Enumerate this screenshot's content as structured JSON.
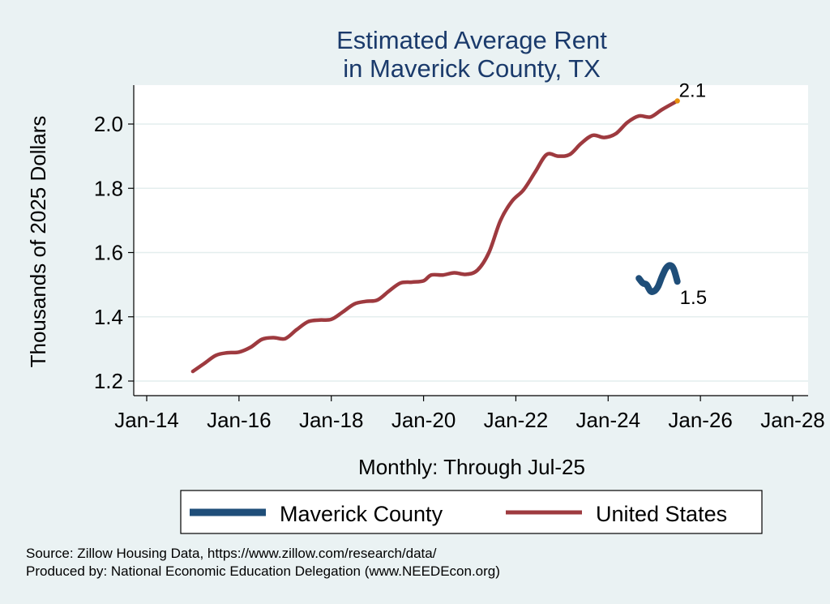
{
  "chart_data": {
    "type": "line",
    "title": [
      "Estimated Average Rent",
      "in Maverick County, TX"
    ],
    "xlabel": "Monthly: Through Jul-25",
    "ylabel": "Thousands of 2025 Dollars",
    "xlim": [
      "2014-01",
      "2028-01"
    ],
    "ylim": [
      1.18,
      2.12
    ],
    "x_ticks": [
      "Jan-14",
      "Jan-16",
      "Jan-18",
      "Jan-20",
      "Jan-22",
      "Jan-24",
      "Jan-26",
      "Jan-28"
    ],
    "y_ticks": [
      1.2,
      1.4,
      1.6,
      1.8,
      2.0
    ],
    "y_tick_labels": [
      "1.2",
      "1.4",
      "1.6",
      "1.8",
      "2.0"
    ],
    "grid": true,
    "legend_position": "bottom",
    "series": [
      {
        "name": "Maverick County",
        "color": "#1f4e79",
        "points": [
          [
            "2024-09",
            1.52
          ],
          [
            "2024-10",
            1.505
          ],
          [
            "2024-11",
            1.5
          ],
          [
            "2024-12",
            1.48
          ],
          [
            "2025-01",
            1.48
          ],
          [
            "2025-02",
            1.495
          ],
          [
            "2025-03",
            1.525
          ],
          [
            "2025-04",
            1.55
          ],
          [
            "2025-05",
            1.56
          ],
          [
            "2025-06",
            1.55
          ],
          [
            "2025-07",
            1.51
          ]
        ],
        "end_label": "1.5"
      },
      {
        "name": "United States",
        "color": "#9e3a3f",
        "points": [
          [
            "2015-01",
            1.23
          ],
          [
            "2015-04",
            1.255
          ],
          [
            "2015-07",
            1.28
          ],
          [
            "2015-10",
            1.288
          ],
          [
            "2016-01",
            1.29
          ],
          [
            "2016-04",
            1.305
          ],
          [
            "2016-07",
            1.33
          ],
          [
            "2016-10",
            1.335
          ],
          [
            "2017-01",
            1.332
          ],
          [
            "2017-04",
            1.36
          ],
          [
            "2017-07",
            1.385
          ],
          [
            "2017-10",
            1.39
          ],
          [
            "2018-01",
            1.392
          ],
          [
            "2018-04",
            1.415
          ],
          [
            "2018-07",
            1.44
          ],
          [
            "2018-10",
            1.448
          ],
          [
            "2019-01",
            1.452
          ],
          [
            "2019-04",
            1.48
          ],
          [
            "2019-07",
            1.505
          ],
          [
            "2019-10",
            1.508
          ],
          [
            "2020-01",
            1.512
          ],
          [
            "2020-03",
            1.53
          ],
          [
            "2020-06",
            1.53
          ],
          [
            "2020-09",
            1.537
          ],
          [
            "2020-12",
            1.532
          ],
          [
            "2021-03",
            1.545
          ],
          [
            "2021-06",
            1.6
          ],
          [
            "2021-09",
            1.7
          ],
          [
            "2021-12",
            1.76
          ],
          [
            "2022-03",
            1.795
          ],
          [
            "2022-06",
            1.85
          ],
          [
            "2022-09",
            1.905
          ],
          [
            "2022-12",
            1.9
          ],
          [
            "2023-03",
            1.905
          ],
          [
            "2023-06",
            1.94
          ],
          [
            "2023-09",
            1.965
          ],
          [
            "2023-12",
            1.958
          ],
          [
            "2024-03",
            1.97
          ],
          [
            "2024-06",
            2.005
          ],
          [
            "2024-09",
            2.025
          ],
          [
            "2024-12",
            2.022
          ],
          [
            "2025-03",
            2.045
          ],
          [
            "2025-07",
            2.072
          ]
        ],
        "end_label": "2.1"
      }
    ]
  },
  "notes": {
    "source": "Source: Zillow Housing Data, https://www.zillow.com/research/data/",
    "produced_by": "Produced by: National Economic Education Delegation (www.NEEDEcon.org)"
  }
}
